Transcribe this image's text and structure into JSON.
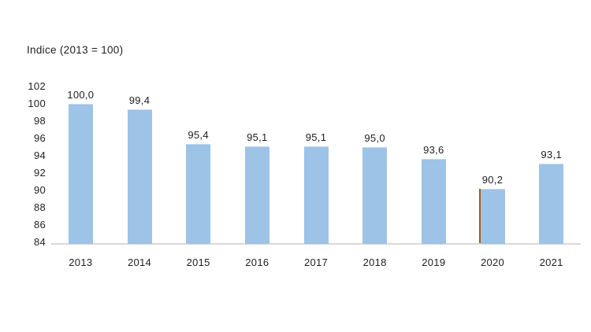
{
  "page": {
    "background_color": "#FFFFFF"
  },
  "chart_data": {
    "type": "bar",
    "title": "Indice (2013 = 100)",
    "categories": [
      "2013",
      "2014",
      "2015",
      "2016",
      "2017",
      "2018",
      "2019",
      "2020",
      "2021"
    ],
    "values": [
      100.0,
      99.4,
      95.4,
      95.1,
      95.1,
      95.0,
      93.6,
      90.2,
      93.1
    ],
    "value_labels": [
      "100,0",
      "99,4",
      "95,4",
      "95,1",
      "95,1",
      "95,0",
      "93,6",
      "90,2",
      "93,1"
    ],
    "xlabel": "",
    "ylabel": "",
    "ylim": [
      84,
      102
    ],
    "yticks": [
      102,
      100,
      98,
      96,
      94,
      92,
      90,
      88,
      86,
      84
    ],
    "grid": false,
    "legend_position": "none",
    "bar_color": "#9DC3E6",
    "axis_line_color": "#D9D9D9",
    "text_color": "#1F1F1F",
    "accent_mark": {
      "category": "2020",
      "color": "#A9561B"
    }
  }
}
